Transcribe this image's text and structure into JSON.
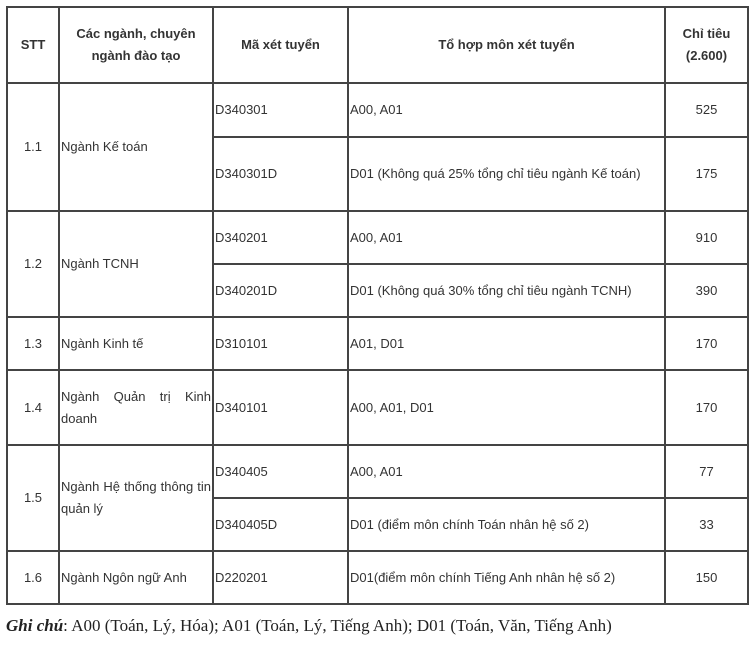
{
  "table": {
    "headers": [
      "STT",
      "Các ngành, chuyên ngành đào tạo",
      "Mã xét tuyển",
      "Tổ hợp môn xét tuyển",
      "Chỉ tiêu (2.600)"
    ],
    "groups": [
      {
        "stt": "1.1",
        "name": "Ngành Kế toán",
        "rows": [
          {
            "code": "D340301",
            "combo": "A00, A01",
            "quota": "525"
          },
          {
            "code": "D340301D",
            "combo": "D01 (Không quá 25% tổng chỉ tiêu ngành Kế toán)",
            "quota": "175"
          }
        ]
      },
      {
        "stt": "1.2",
        "name": "Ngành TCNH",
        "rows": [
          {
            "code": "D340201",
            "combo": "A00, A01",
            "quota": "910"
          },
          {
            "code": "D340201D",
            "combo": "D01 (Không quá 30% tổng chỉ tiêu ngành TCNH)",
            "quota": "390"
          }
        ]
      },
      {
        "stt": "1.3",
        "name": "Ngành Kinh tế",
        "rows": [
          {
            "code": "D310101",
            "combo": "A01, D01",
            "quota": "170"
          }
        ]
      },
      {
        "stt": "1.4",
        "name": "Ngành Quản trị Kinh doanh",
        "rows": [
          {
            "code": "D340101",
            "combo": "A00, A01, D01",
            "quota": "170"
          }
        ]
      },
      {
        "stt": "1.5",
        "name": "Ngành Hệ thống thông tin quản lý",
        "rows": [
          {
            "code": "D340405",
            "combo": "A00, A01",
            "quota": "77"
          },
          {
            "code": "D340405D",
            "combo": "D01 (điểm môn chính Toán nhân hệ số 2)",
            "quota": "33"
          }
        ]
      },
      {
        "stt": "1.6",
        "name": "Ngành Ngôn ngữ Anh",
        "rows": [
          {
            "code": "D220201",
            "combo": "D01(điểm môn chính Tiếng Anh nhân hệ số 2)",
            "quota": "150"
          }
        ]
      }
    ]
  },
  "note": {
    "label": "Ghi chú",
    "text": ": A00 (Toán, Lý, Hóa); A01 (Toán, Lý, Tiếng Anh);  D01 (Toán, Văn, Tiếng Anh)"
  }
}
